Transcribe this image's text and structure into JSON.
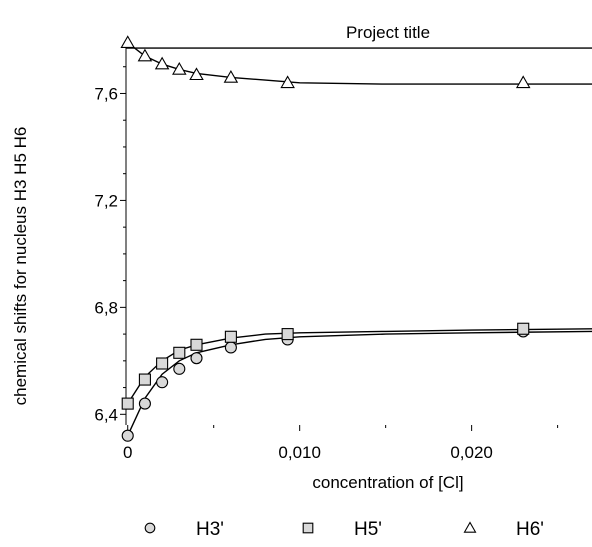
{
  "chart_data": {
    "type": "scatter",
    "title": "Project title",
    "xlabel": "concentration of [Cl]",
    "ylabel": "chemical shifts for nucleus H3 H5 H6",
    "xlim": [
      -0.0001,
      0.027
    ],
    "ylim": [
      6.36,
      7.8
    ],
    "x_ticks": [
      0,
      0.01,
      0.02
    ],
    "x_tick_labels": [
      "0",
      "0,010",
      "0,020"
    ],
    "y_ticks": [
      6.4,
      6.8,
      7.2,
      7.6
    ],
    "y_tick_labels": [
      "6,4",
      "6,8",
      "7,2",
      "7,6"
    ],
    "legend_position": "bottom",
    "grid": false,
    "series": [
      {
        "name": "H3'",
        "marker": "circle",
        "color": "#000000",
        "points": [
          [
            0,
            6.32
          ],
          [
            0.001,
            6.44
          ],
          [
            0.002,
            6.52
          ],
          [
            0.003,
            6.57
          ],
          [
            0.004,
            6.61
          ],
          [
            0.006,
            6.65
          ],
          [
            0.0093,
            6.68
          ],
          [
            0.023,
            6.71
          ]
        ],
        "fit": [
          [
            0,
            6.32
          ],
          [
            0.001,
            6.46
          ],
          [
            0.002,
            6.55
          ],
          [
            0.003,
            6.6
          ],
          [
            0.004,
            6.63
          ],
          [
            0.006,
            6.66
          ],
          [
            0.008,
            6.68
          ],
          [
            0.01,
            6.69
          ],
          [
            0.015,
            6.7
          ],
          [
            0.02,
            6.705
          ],
          [
            0.027,
            6.71
          ]
        ]
      },
      {
        "name": "H5'",
        "marker": "square",
        "color": "#000000",
        "points": [
          [
            0,
            6.44
          ],
          [
            0.001,
            6.53
          ],
          [
            0.002,
            6.59
          ],
          [
            0.003,
            6.63
          ],
          [
            0.004,
            6.66
          ],
          [
            0.006,
            6.69
          ],
          [
            0.0093,
            6.7
          ],
          [
            0.023,
            6.72
          ]
        ],
        "fit": [
          [
            0,
            6.44
          ],
          [
            0.001,
            6.54
          ],
          [
            0.002,
            6.6
          ],
          [
            0.003,
            6.64
          ],
          [
            0.004,
            6.66
          ],
          [
            0.006,
            6.685
          ],
          [
            0.008,
            6.7
          ],
          [
            0.01,
            6.705
          ],
          [
            0.015,
            6.71
          ],
          [
            0.02,
            6.715
          ],
          [
            0.027,
            6.72
          ]
        ]
      },
      {
        "name": "H6'",
        "marker": "triangle",
        "color": "#000000",
        "points": [
          [
            0,
            7.79
          ],
          [
            0.001,
            7.74
          ],
          [
            0.002,
            7.71
          ],
          [
            0.003,
            7.69
          ],
          [
            0.004,
            7.67
          ],
          [
            0.006,
            7.66
          ],
          [
            0.0093,
            7.64
          ],
          [
            0.023,
            7.64
          ]
        ],
        "fit": [
          [
            0,
            7.79
          ],
          [
            0.001,
            7.74
          ],
          [
            0.002,
            7.71
          ],
          [
            0.003,
            7.69
          ],
          [
            0.004,
            7.675
          ],
          [
            0.006,
            7.66
          ],
          [
            0.008,
            7.65
          ],
          [
            0.01,
            7.64
          ],
          [
            0.015,
            7.635
          ],
          [
            0.02,
            7.635
          ],
          [
            0.027,
            7.635
          ]
        ],
        "reference_line": 7.77
      }
    ]
  },
  "legend": {
    "items": [
      {
        "label": "H3'",
        "marker": "circle"
      },
      {
        "label": "H5'",
        "marker": "square"
      },
      {
        "label": "H6'",
        "marker": "triangle"
      }
    ]
  }
}
